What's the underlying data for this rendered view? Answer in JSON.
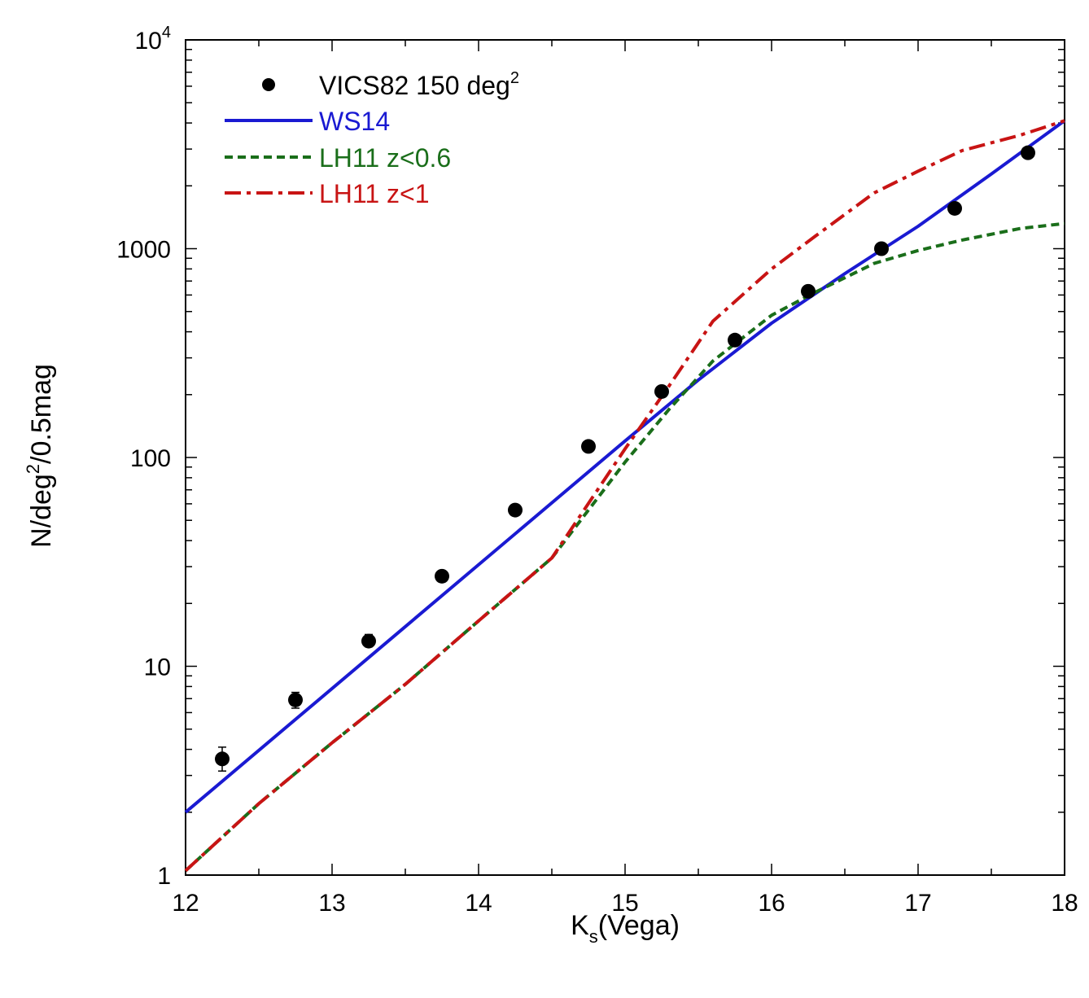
{
  "chart_data": {
    "type": "scatter",
    "title": "",
    "xlabel": {
      "main": "K",
      "sub": "s",
      "rest": "(Vega)"
    },
    "ylabel": {
      "prefix": "N/deg",
      "sup": "2",
      "suffix": "/0.5mag"
    },
    "xlim": [
      12,
      18
    ],
    "ylim": [
      1,
      10000
    ],
    "yscale": "log",
    "xticks": [
      {
        "value": 12,
        "label": "12"
      },
      {
        "value": 13,
        "label": "13"
      },
      {
        "value": 14,
        "label": "14"
      },
      {
        "value": 15,
        "label": "15"
      },
      {
        "value": 16,
        "label": "16"
      },
      {
        "value": 17,
        "label": "17"
      },
      {
        "value": 18,
        "label": "18"
      }
    ],
    "yticks": [
      {
        "value": 1,
        "label": "1"
      },
      {
        "value": 10,
        "label": "10"
      },
      {
        "value": 100,
        "label": "100"
      },
      {
        "value": 1000,
        "label": "1000"
      }
    ],
    "ytick_top": {
      "value": 10000,
      "base": "10",
      "exp": "4"
    },
    "legend_position": "top-left",
    "series": [
      {
        "name": "VICS82 150 deg",
        "name_sup": "2",
        "kind": "points",
        "color": "#000000",
        "x": [
          12.25,
          12.75,
          13.25,
          13.75,
          14.25,
          14.75,
          15.25,
          15.75,
          16.25,
          16.75,
          17.25,
          17.75
        ],
        "y": [
          3.6,
          6.9,
          13.2,
          27,
          56,
          113,
          207,
          365,
          625,
          1000,
          1560,
          2880
        ],
        "yerr_low": [
          3.15,
          6.3,
          12.4,
          26,
          55,
          112,
          205,
          362,
          621,
          995,
          1550,
          2860
        ],
        "yerr_high": [
          4.1,
          7.5,
          14.2,
          28.2,
          57.5,
          115,
          210,
          368,
          630,
          1006,
          1570,
          2900
        ]
      },
      {
        "name": "WS14",
        "kind": "line",
        "style": "solid",
        "color": "#1a1ad2",
        "x": [
          12.0,
          15.0,
          15.5,
          16.0,
          16.5,
          17.0,
          17.5,
          18.0
        ],
        "y": [
          2.0,
          120,
          235,
          440,
          760,
          1280,
          2280,
          4100
        ]
      },
      {
        "name": "LH11 z<0.6",
        "kind": "line",
        "style": "dashed",
        "color": "#1a6e1a",
        "x": [
          12.0,
          12.5,
          13.0,
          13.5,
          14.0,
          14.5,
          15.0,
          15.3,
          15.6,
          16.0,
          16.3,
          16.7,
          17.0,
          17.3,
          17.7,
          18.0
        ],
        "y": [
          1.05,
          2.2,
          4.3,
          8.2,
          16.5,
          33,
          95,
          170,
          290,
          480,
          620,
          850,
          980,
          1100,
          1250,
          1320
        ]
      },
      {
        "name": "LH11 z<1",
        "kind": "line",
        "style": "dashdot",
        "color": "#c81414",
        "x": [
          12.0,
          12.5,
          13.0,
          13.5,
          14.0,
          14.5,
          15.0,
          15.3,
          15.6,
          16.0,
          16.3,
          16.7,
          17.0,
          17.3,
          17.7,
          18.0
        ],
        "y": [
          1.05,
          2.2,
          4.3,
          8.2,
          16.5,
          33,
          110,
          220,
          450,
          800,
          1150,
          1850,
          2350,
          2950,
          3500,
          4100
        ]
      }
    ]
  }
}
